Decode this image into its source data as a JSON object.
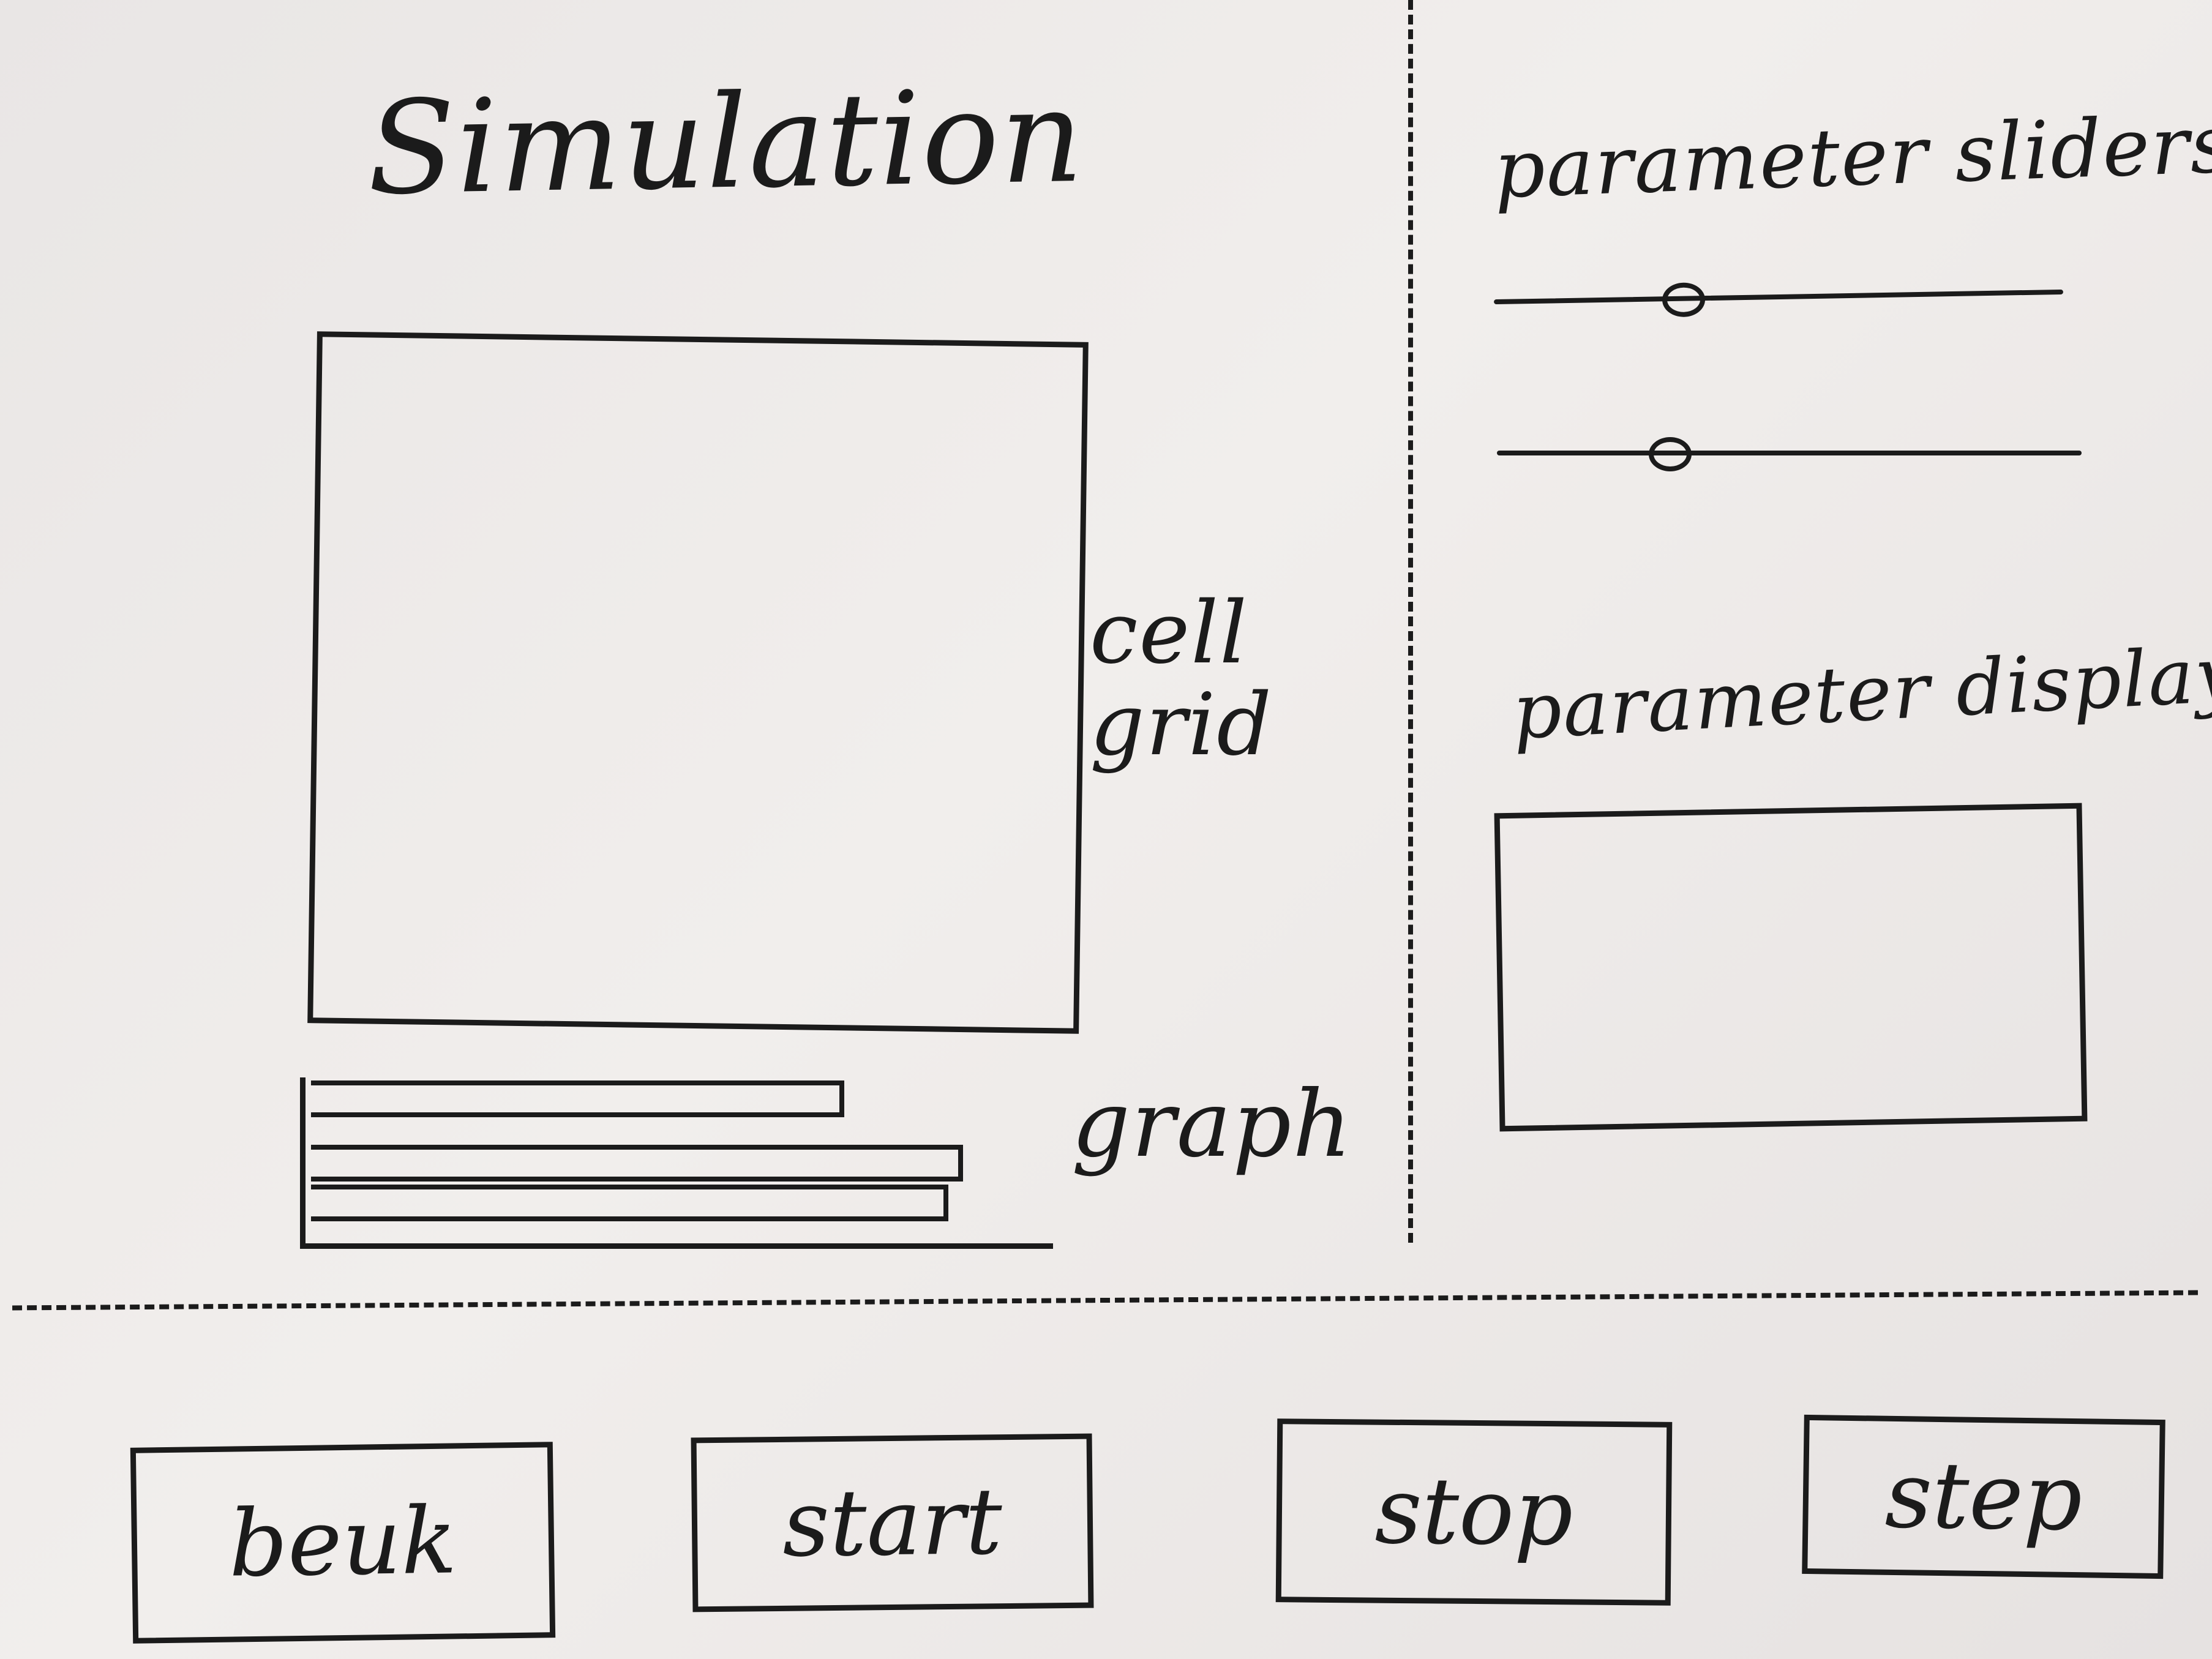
{
  "title": "Simulation",
  "cell_grid": {
    "label": "cell grid"
  },
  "graph": {
    "label": "graph",
    "bars": [
      0.72,
      0.88,
      0.86
    ]
  },
  "parameters": {
    "sliders_label": "parameter sliders",
    "sliders": [
      {
        "value": 0.32
      },
      {
        "value": 0.28
      }
    ],
    "display_label": "parameter display"
  },
  "buttons": {
    "back": "beuk",
    "start": "start",
    "stop": "stop",
    "step": "step"
  }
}
